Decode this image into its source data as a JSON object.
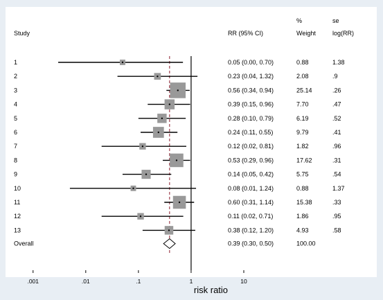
{
  "chart_data": {
    "type": "forest",
    "title": "",
    "xlabel": "risk ratio",
    "x_scale": "log",
    "xlim": [
      0.00055,
      10
    ],
    "x_ticks": [
      0.001,
      0.01,
      0.1,
      1,
      10
    ],
    "x_tick_labels": [
      ".001",
      ".01",
      ".1",
      "1",
      "10"
    ],
    "reference_line": 1,
    "overall_line": 0.39,
    "columns": {
      "study": "Study",
      "rr": "RR (95% CI)",
      "weight_top": "%",
      "weight": "Weight",
      "se_top": "se",
      "se": "log(RR)"
    },
    "studies": [
      {
        "label": "1",
        "rr": 0.05,
        "lo": 0.003,
        "hi": 0.7,
        "rr_text": "0.05 (0.00, 0.70)",
        "weight": "0.88",
        "w": 0.88,
        "se": "1.38"
      },
      {
        "label": "2",
        "rr": 0.23,
        "lo": 0.04,
        "hi": 1.32,
        "rr_text": "0.23 (0.04, 1.32)",
        "weight": "2.08",
        "w": 2.08,
        "se": ".9"
      },
      {
        "label": "3",
        "rr": 0.56,
        "lo": 0.34,
        "hi": 0.94,
        "rr_text": "0.56 (0.34, 0.94)",
        "weight": "25.14",
        "w": 25.14,
        "se": ".26"
      },
      {
        "label": "4",
        "rr": 0.39,
        "lo": 0.15,
        "hi": 0.96,
        "rr_text": "0.39 (0.15, 0.96)",
        "weight": "7.70",
        "w": 7.7,
        "se": ".47"
      },
      {
        "label": "5",
        "rr": 0.28,
        "lo": 0.1,
        "hi": 0.79,
        "rr_text": "0.28 (0.10, 0.79)",
        "weight": "6.19",
        "w": 6.19,
        "se": ".52"
      },
      {
        "label": "6",
        "rr": 0.24,
        "lo": 0.11,
        "hi": 0.55,
        "rr_text": "0.24 (0.11, 0.55)",
        "weight": "9.79",
        "w": 9.79,
        "se": ".41"
      },
      {
        "label": "7",
        "rr": 0.12,
        "lo": 0.02,
        "hi": 0.81,
        "rr_text": "0.12 (0.02, 0.81)",
        "weight": "1.82",
        "w": 1.82,
        "se": ".96"
      },
      {
        "label": "8",
        "rr": 0.53,
        "lo": 0.29,
        "hi": 0.96,
        "rr_text": "0.53 (0.29, 0.96)",
        "weight": "17.62",
        "w": 17.62,
        "se": ".31"
      },
      {
        "label": "9",
        "rr": 0.14,
        "lo": 0.05,
        "hi": 0.42,
        "rr_text": "0.14 (0.05, 0.42)",
        "weight": "5.75",
        "w": 5.75,
        "se": ".54"
      },
      {
        "label": "10",
        "rr": 0.08,
        "lo": 0.005,
        "hi": 1.24,
        "rr_text": "0.08 (0.01, 1.24)",
        "weight": "0.88",
        "w": 0.88,
        "se": "1.37"
      },
      {
        "label": "11",
        "rr": 0.6,
        "lo": 0.31,
        "hi": 1.14,
        "rr_text": "0.60 (0.31, 1.14)",
        "weight": "15.38",
        "w": 15.38,
        "se": ".33"
      },
      {
        "label": "12",
        "rr": 0.11,
        "lo": 0.02,
        "hi": 0.71,
        "rr_text": "0.11 (0.02, 0.71)",
        "weight": "1.86",
        "w": 1.86,
        "se": ".95"
      },
      {
        "label": "13",
        "rr": 0.38,
        "lo": 0.12,
        "hi": 1.2,
        "rr_text": "0.38 (0.12, 1.20)",
        "weight": "4.93",
        "w": 4.93,
        "se": ".58"
      }
    ],
    "overall": {
      "label": "Overall",
      "rr": 0.39,
      "lo": 0.3,
      "hi": 0.5,
      "rr_text": "0.39 (0.30, 0.50)",
      "weight": "100.00"
    },
    "colors": {
      "box": "#999999",
      "ci": "#000000",
      "overall_line": "#8b1a2b",
      "background": "#e8eef4"
    }
  }
}
